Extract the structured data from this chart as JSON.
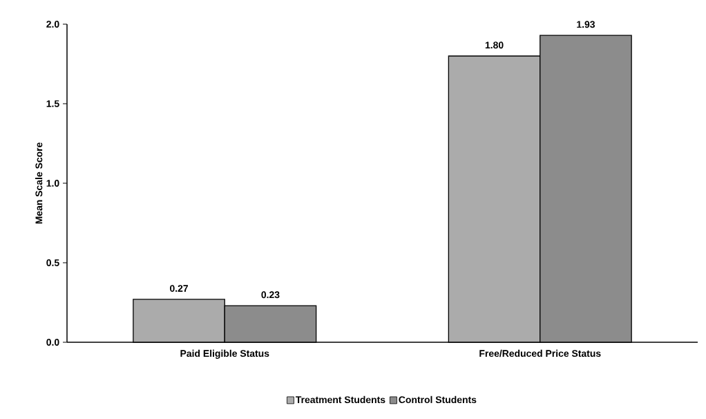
{
  "chart_data": {
    "type": "bar",
    "ylabel": "Mean Scale Score",
    "categories": [
      "Paid Eligible Status",
      "Free/Reduced Price Status"
    ],
    "series": [
      {
        "name": "Treatment Students",
        "color": "#ababab",
        "values": [
          0.27,
          1.8
        ],
        "value_labels": [
          "0.27",
          "1.80"
        ]
      },
      {
        "name": "Control Students",
        "color": "#8c8c8c",
        "values": [
          0.23,
          1.93
        ],
        "value_labels": [
          "0.23",
          "1.93"
        ]
      }
    ],
    "ylim": [
      0,
      2
    ],
    "yticks": [
      {
        "value": 0,
        "label": "0.0"
      },
      {
        "value": 0.5,
        "label": "0.5"
      },
      {
        "value": 1,
        "label": "1.0"
      },
      {
        "value": 1.5,
        "label": "1.5"
      },
      {
        "value": 2,
        "label": "2.0"
      }
    ],
    "grid": false,
    "legend": "bottom"
  }
}
